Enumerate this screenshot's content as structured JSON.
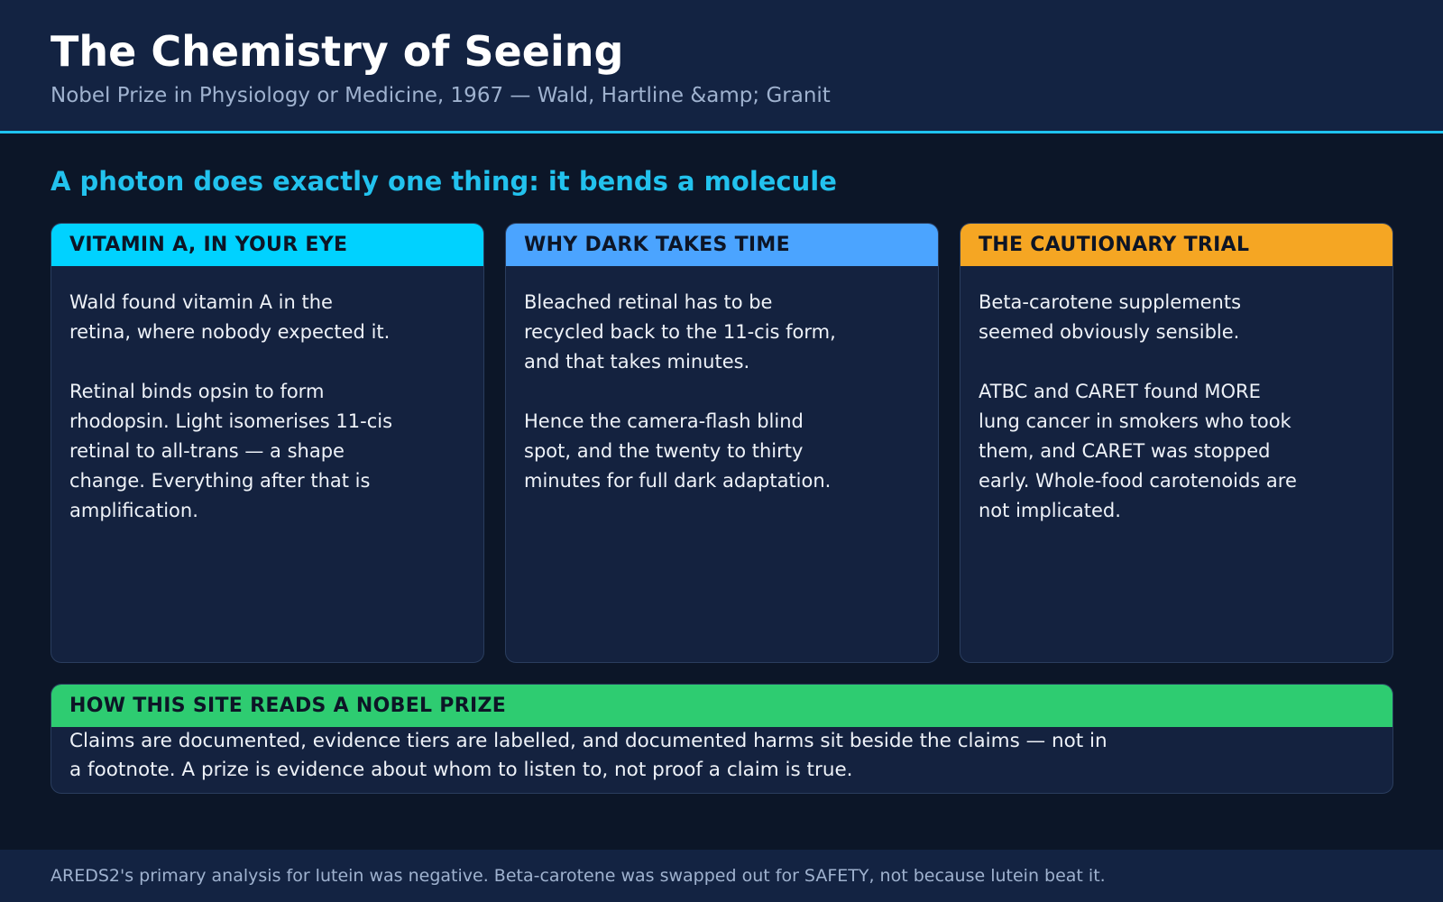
{
  "header": {
    "title": "The Chemistry of Seeing",
    "subtitle": "Nobel Prize in Physiology or Medicine, 1967 — Wald, Hartline &amp; Granit"
  },
  "headline": "A photon does exactly one thing: it bends a molecule",
  "cards": [
    {
      "title": "VITAMIN A, IN YOUR EYE",
      "color": "#00d2ff",
      "paragraphs": [
        "Wald found vitamin A in the retina, where nobody expected it.",
        "Retinal binds opsin to form rhodopsin. Light isomerises 11-cis retinal to all-trans — a shape change. Everything after that is amplification."
      ]
    },
    {
      "title": "WHY DARK TAKES TIME",
      "color": "#4ba4ff",
      "paragraphs": [
        "Bleached retinal has to be recycled back to the 11-cis form, and that takes minutes.",
        "Hence the camera-flash blind spot, and the twenty to thirty minutes for full dark adaptation."
      ]
    },
    {
      "title": "THE CAUTIONARY TRIAL",
      "color": "#f5a623",
      "paragraphs": [
        "Beta-carotene supplements seemed obviously sensible.",
        "ATBC and CARET found MORE lung cancer in smokers who took them, and CARET was stopped early. Whole-food carotenoids are not implicated."
      ]
    }
  ],
  "summary": {
    "title": "HOW THIS SITE READS A NOBEL PRIZE",
    "color": "#2ecc71",
    "text": "Claims are documented, evidence tiers are labelled, and documented harms sit beside the claims — not in a footnote. A prize is evidence about whom to listen to, not proof a claim is true."
  },
  "footer": {
    "text": "AREDS2's primary analysis for lutein was negative. Beta-carotene was swapped out for SAFETY, not because lutein beat it."
  }
}
